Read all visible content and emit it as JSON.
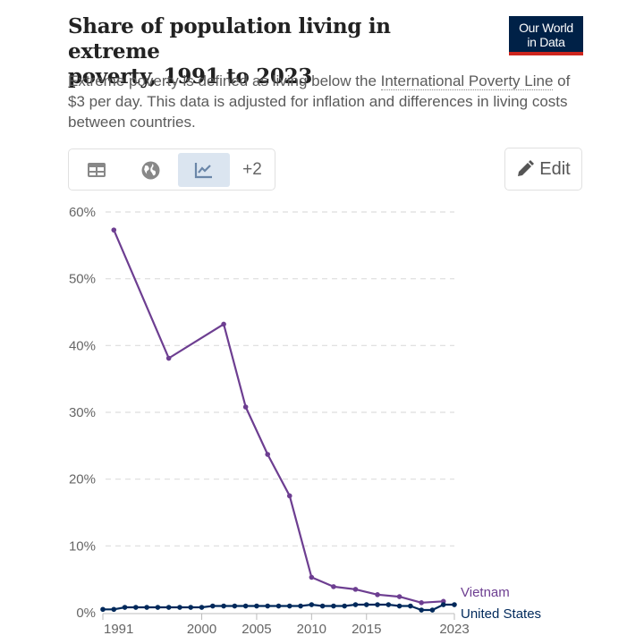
{
  "header": {
    "title": "Share of population living in extreme poverty, 1991 to 2023",
    "title_line1": "Share of population living in extreme",
    "title_line2": "poverty, 1991 to 2023",
    "logo_line1": "Our World",
    "logo_line2": "in Data",
    "subtitle_pre": "Extreme poverty is defined as living below the ",
    "subtitle_link": "International Poverty Line",
    "subtitle_post": " of $3 per day. This data is adjusted for inflation and differences in living costs between countries."
  },
  "toolbar": {
    "table_icon": "table-icon",
    "map_icon": "globe-icon",
    "chart_icon": "line-chart-icon",
    "more_label": "+2",
    "edit_label": "Edit",
    "edit_icon": "pencil-icon"
  },
  "colors": {
    "vietnam": "#6d3e91",
    "united_states": "#00295b",
    "grid": "#dddddd",
    "brand": "#002147",
    "brand_accent": "#ce261e"
  },
  "chart_data": {
    "type": "line",
    "title": "Share of population living in extreme poverty, 1991 to 2023",
    "xlabel": "",
    "ylabel": "",
    "xlim": [
      1991,
      2023
    ],
    "ylim": [
      0,
      60
    ],
    "yticks": [
      0,
      10,
      20,
      30,
      40,
      50,
      60
    ],
    "ytick_labels": [
      "0%",
      "10%",
      "20%",
      "30%",
      "40%",
      "50%",
      "60%"
    ],
    "xticks": [
      1991,
      2000,
      2005,
      2010,
      2015,
      2023
    ],
    "xtick_labels": [
      "1991",
      "2000",
      "2005",
      "2010",
      "2015",
      "2023"
    ],
    "grid": "horizontal dashed",
    "legend": "inline-right",
    "series": [
      {
        "name": "Vietnam",
        "x": [
          1992,
          1997,
          2002,
          2004,
          2006,
          2008,
          2010,
          2012,
          2014,
          2016,
          2018,
          2020,
          2022
        ],
        "values": [
          57.3,
          38.1,
          43.2,
          30.8,
          23.7,
          17.5,
          5.3,
          3.9,
          3.5,
          2.7,
          2.4,
          1.5,
          1.7
        ]
      },
      {
        "name": "United States",
        "x": [
          1991,
          1992,
          1993,
          1994,
          1995,
          1996,
          1997,
          1998,
          1999,
          2000,
          2001,
          2002,
          2003,
          2004,
          2005,
          2006,
          2007,
          2008,
          2009,
          2010,
          2011,
          2012,
          2013,
          2014,
          2015,
          2016,
          2017,
          2018,
          2019,
          2020,
          2021,
          2022,
          2023
        ],
        "values": [
          0.5,
          0.5,
          0.8,
          0.8,
          0.8,
          0.8,
          0.8,
          0.8,
          0.8,
          0.8,
          1.0,
          1.0,
          1.0,
          1.0,
          1.0,
          1.0,
          1.0,
          1.0,
          1.0,
          1.2,
          1.0,
          1.0,
          1.0,
          1.2,
          1.2,
          1.2,
          1.2,
          1.0,
          1.0,
          0.4,
          0.4,
          1.2,
          1.2
        ]
      }
    ]
  }
}
